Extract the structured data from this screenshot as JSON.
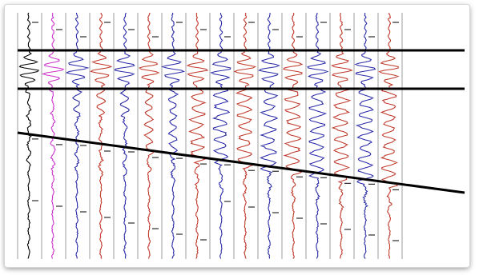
{
  "figure": {
    "description_type": "seismic-trace-gather",
    "background": "#ffffff",
    "grid_line_color": "#000000",
    "horizon_color": "#000000",
    "traces": [
      {
        "index": 1,
        "color": "#000000"
      },
      {
        "index": 2,
        "color": "#cc33cc"
      },
      {
        "index": 3,
        "color": "#2a2aa8"
      },
      {
        "index": 4,
        "color": "#c0392b"
      },
      {
        "index": 5,
        "color": "#2a2aa8"
      },
      {
        "index": 6,
        "color": "#c0392b"
      },
      {
        "index": 7,
        "color": "#2a2aa8"
      },
      {
        "index": 8,
        "color": "#c0392b"
      },
      {
        "index": 9,
        "color": "#2a2aa8"
      },
      {
        "index": 10,
        "color": "#c0392b"
      },
      {
        "index": 11,
        "color": "#2a2aa8"
      },
      {
        "index": 12,
        "color": "#c0392b"
      },
      {
        "index": 13,
        "color": "#2a2aa8"
      },
      {
        "index": 14,
        "color": "#c0392b"
      },
      {
        "index": 15,
        "color": "#2a2aa8"
      },
      {
        "index": 16,
        "color": "#c0392b"
      }
    ],
    "horizons": [
      {
        "name": "upper-horizontal"
      },
      {
        "name": "lower-horizontal"
      },
      {
        "name": "dipping"
      }
    ]
  }
}
